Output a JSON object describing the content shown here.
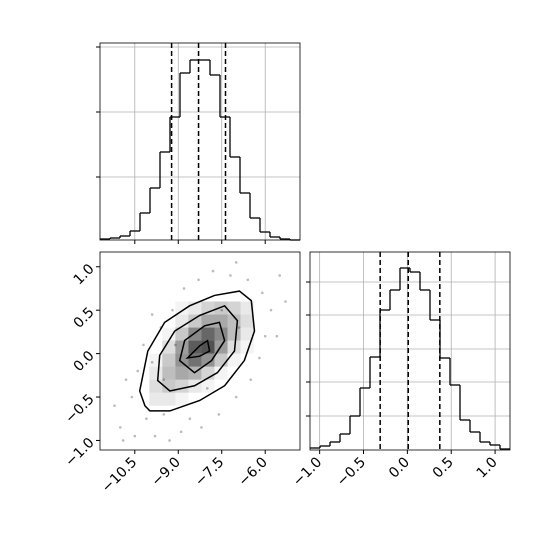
{
  "chart_data": {
    "type": "corner",
    "params": [
      {
        "xlim": [
          -11.7,
          -4.8
        ],
        "xticks": [
          {
            "value": -10.5,
            "label": "−10.5"
          },
          {
            "value": -9.0,
            "label": "−9.0"
          },
          {
            "value": -7.5,
            "label": "−7.5"
          },
          {
            "value": -6.0,
            "label": "−6.0"
          }
        ],
        "bins": [
          -11.7,
          -11.355,
          -11.01,
          -10.665,
          -10.32,
          -9.975,
          -9.63,
          -9.285,
          -8.94,
          -8.595,
          -8.25,
          -7.905,
          -7.56,
          -7.215,
          -6.87,
          -6.525,
          -6.18,
          -5.835,
          -5.49,
          -5.145,
          -4.8
        ],
        "counts": [
          1,
          2,
          4,
          9,
          27,
          52,
          88,
          123,
          167,
          180,
          180,
          165,
          123,
          83,
          47,
          22,
          8,
          3,
          1,
          0
        ],
        "hist_ylim": [
          0,
          197
        ],
        "hist_yticks": [
          63,
          128,
          193
        ],
        "quantiles": [
          -9.23,
          -8.3,
          -7.37
        ]
      },
      {
        "xlim": [
          -1.11,
          1.17
        ],
        "xticks": [
          {
            "value": -1.0,
            "label": "−1.0"
          },
          {
            "value": -0.5,
            "label": "−0.5"
          },
          {
            "value": 0.0,
            "label": "0.0"
          },
          0.5,
          {
            "value": 1.0,
            "label": "1.0"
          }
        ],
        "bins": [
          -1.11,
          -0.996,
          -0.882,
          -0.768,
          -0.654,
          -0.54,
          -0.426,
          -0.312,
          -0.198,
          -0.084,
          0.03,
          0.144,
          0.258,
          0.372,
          0.486,
          0.6,
          0.714,
          0.828,
          0.942,
          1.056,
          1.17
        ],
        "counts": [
          2,
          4,
          8,
          16,
          34,
          62,
          93,
          140,
          160,
          182,
          178,
          160,
          130,
          92,
          65,
          30,
          18,
          8,
          5,
          1
        ],
        "hist_ylim": [
          0,
          198
        ],
        "hist_yticks": [
          34,
          68,
          101,
          135,
          168
        ],
        "quantiles": [
          -0.31,
          0.01,
          0.37
        ]
      }
    ],
    "grid": true,
    "color": "#000000",
    "scatter": {
      "color": "#bbbbbb",
      "x": [
        -11.0,
        -10.6,
        -10.4,
        -10.8,
        -10.1,
        -9.8,
        -9.5,
        -9.9,
        -10.2,
        -9.6,
        -9.2,
        -8.8,
        -8.3,
        -7.8,
        -7.2,
        -6.6,
        -6.1,
        -5.8,
        -6.0,
        -6.2,
        -6.5,
        -7.0,
        -7.6,
        -8.2,
        -8.9,
        -9.3,
        -10.5,
        -11.2,
        -5.5,
        -5.3,
        -7.0,
        -9.9,
        -8.6,
        -6.9,
        -9.1,
        -7.5,
        -8.0,
        -9.5,
        -10.9,
        -5.6
      ],
      "y": [
        -0.85,
        -0.5,
        -0.2,
        -0.3,
        -0.75,
        -0.95,
        -0.7,
        -0.1,
        0.1,
        0.3,
        0.5,
        0.75,
        0.85,
        0.95,
        0.9,
        0.85,
        0.7,
        0.5,
        0.2,
        -0.05,
        -0.3,
        -0.5,
        -0.7,
        -0.85,
        -0.9,
        -1.0,
        -0.95,
        -0.6,
        0.9,
        0.6,
        1.05,
        0.45,
        -0.75,
        0.3,
        0.1,
        0.5,
        -0.4,
        -0.3,
        -1.0,
        0.2
      ]
    },
    "density": {
      "xedges": [
        -10.0,
        -9.55,
        -9.1,
        -8.65,
        -8.2,
        -7.75,
        -7.3,
        -6.85,
        -6.4
      ],
      "yedges": [
        -0.6,
        -0.45,
        -0.3,
        -0.15,
        0.0,
        0.15,
        0.3,
        0.45,
        0.6
      ],
      "values": [
        [
          0.1,
          0.1,
          0.05,
          0,
          0,
          0,
          0,
          0
        ],
        [
          0.15,
          0.25,
          0.2,
          0.1,
          0.05,
          0,
          0,
          0
        ],
        [
          0.1,
          0.3,
          0.4,
          0.35,
          0.2,
          0.05,
          0,
          0
        ],
        [
          0.05,
          0.25,
          0.5,
          0.65,
          0.5,
          0.25,
          0.05,
          0
        ],
        [
          0,
          0.15,
          0.45,
          0.75,
          0.8,
          0.45,
          0.15,
          0.05
        ],
        [
          0,
          0.05,
          0.25,
          0.55,
          0.7,
          0.55,
          0.3,
          0.1
        ],
        [
          0,
          0,
          0.1,
          0.25,
          0.4,
          0.4,
          0.3,
          0.15
        ],
        [
          0,
          0,
          0.05,
          0.1,
          0.2,
          0.25,
          0.2,
          0.1
        ]
      ]
    },
    "contours": [
      {
        "x": [
          -10.15,
          -10.33,
          -10.05,
          -9.47,
          -8.61,
          -7.75,
          -6.89,
          -6.48,
          -6.37,
          -6.72,
          -7.4,
          -8.26,
          -9.29,
          -9.98
        ],
        "y": [
          -0.6,
          -0.43,
          0.03,
          0.36,
          0.55,
          0.67,
          0.72,
          0.61,
          0.26,
          -0.08,
          -0.37,
          -0.54,
          -0.66,
          -0.66
        ]
      },
      {
        "x": [
          -9.71,
          -9.64,
          -9.12,
          -8.26,
          -7.4,
          -6.96,
          -7.06,
          -7.65,
          -8.44,
          -9.29
        ],
        "y": [
          -0.31,
          -0.02,
          0.26,
          0.44,
          0.55,
          0.38,
          0.03,
          -0.22,
          -0.37,
          -0.43
        ]
      },
      {
        "x": [
          -8.95,
          -8.78,
          -8.09,
          -7.58,
          -7.4,
          -7.85,
          -8.44
        ],
        "y": [
          -0.08,
          0.15,
          0.32,
          0.36,
          0.15,
          -0.08,
          -0.22
        ]
      },
      {
        "x": [
          -8.68,
          -8.26,
          -7.99,
          -7.92,
          -8.26
        ],
        "y": [
          -0.05,
          0.09,
          0.15,
          0.03,
          -0.03
        ]
      }
    ]
  }
}
